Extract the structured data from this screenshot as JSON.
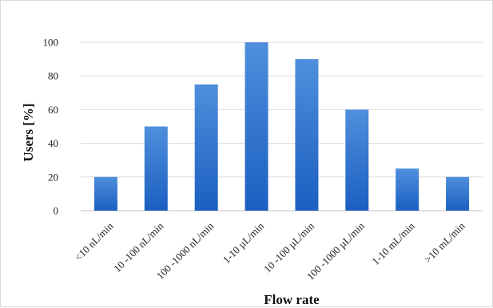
{
  "chart_data": {
    "type": "bar",
    "title": "",
    "xlabel": "Flow rate",
    "ylabel": "Users [%]",
    "categories": [
      "<10 nL/min",
      "10 -100 nL/min",
      "100 -1000 nL/min",
      "1-10 µL/min",
      "10 -100 µL/min",
      "100 -1000 µL/min",
      "1-10 mL/min",
      ">10 mL/min"
    ],
    "values": [
      20,
      50,
      75,
      100,
      90,
      60,
      25,
      20
    ],
    "ylim": [
      0,
      100
    ],
    "yticks": [
      0,
      20,
      40,
      60,
      80,
      100
    ],
    "grid": true,
    "legend": "none",
    "colors": {
      "bar_top": "#4f8fdc",
      "bar_bottom": "#1b5fc1",
      "grid": "#dcdcdc",
      "axis": "#bfbfbf"
    }
  }
}
